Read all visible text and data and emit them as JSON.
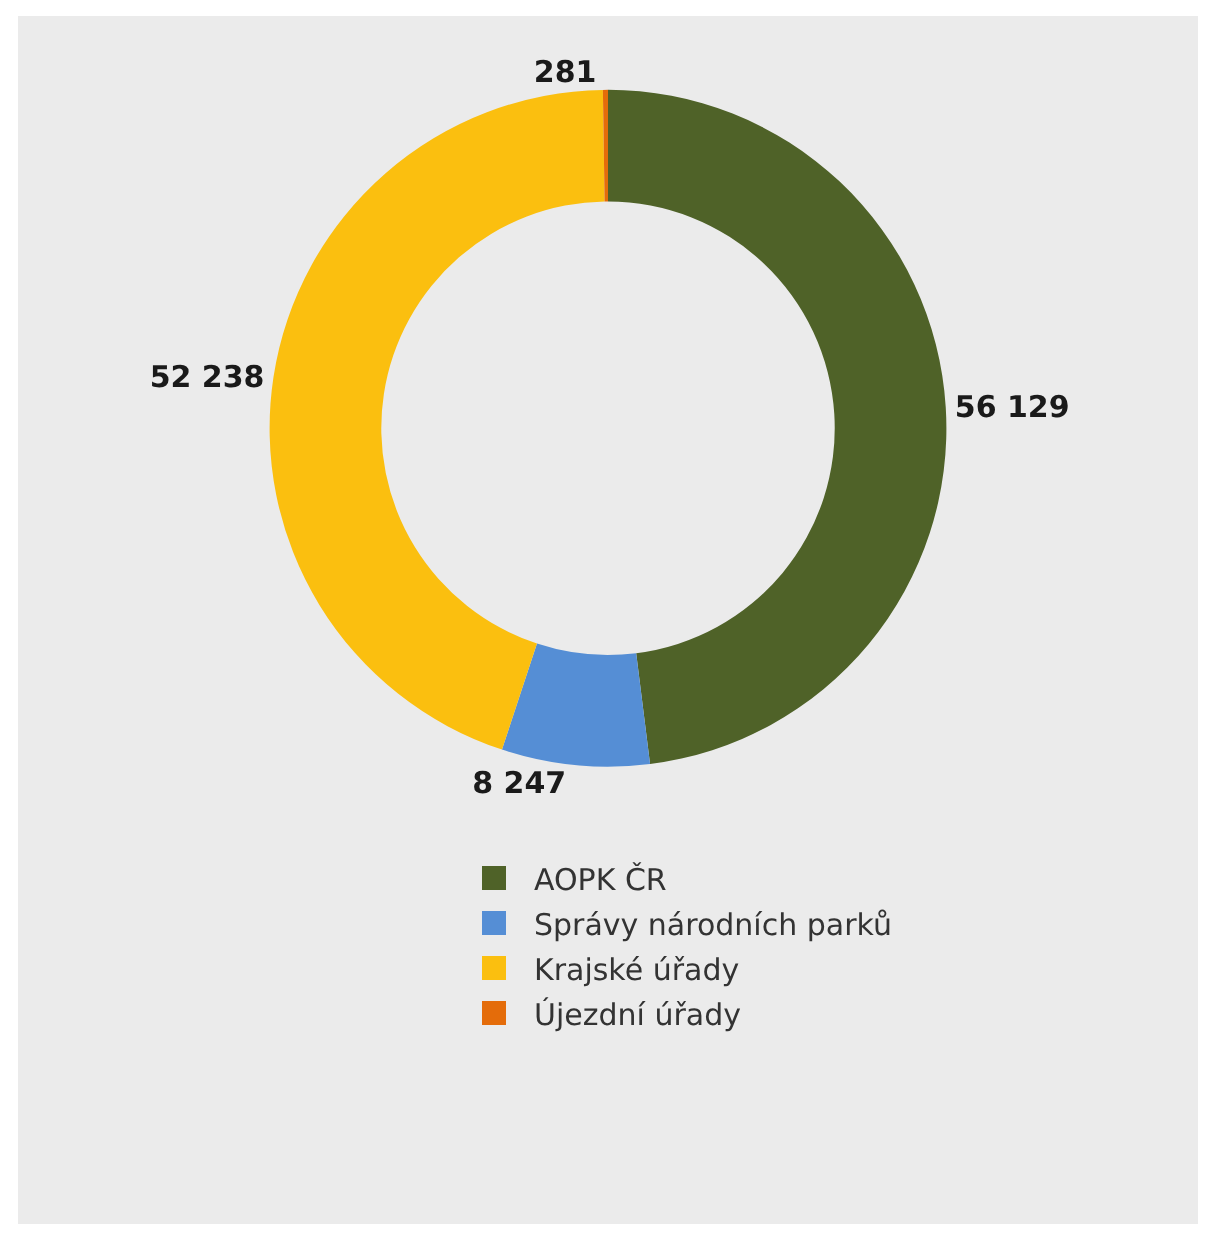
{
  "chart_data": {
    "type": "donut",
    "categories": [
      "AOPK ČR",
      "Správy národních parků",
      "Krajské úřady",
      "Újezdní úřady"
    ],
    "values": [
      56129,
      8247,
      52238,
      281
    ],
    "value_labels": [
      "56 129",
      "8 247",
      "52 238",
      "281"
    ],
    "colors": [
      "#4f6228",
      "#558ed5",
      "#fbbf0f",
      "#e46c0a"
    ],
    "legend": "bottom"
  }
}
